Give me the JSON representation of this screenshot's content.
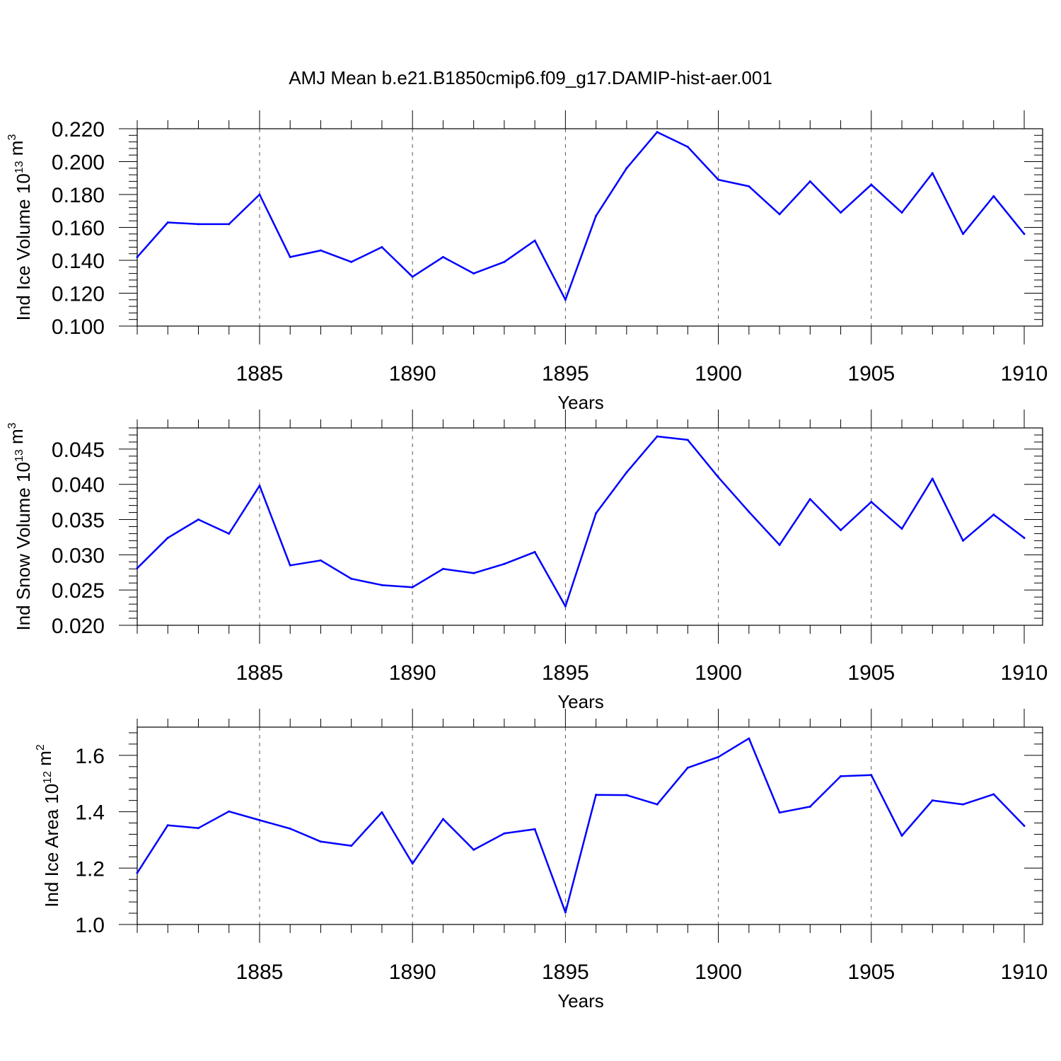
{
  "figure_title": "AMJ Mean b.e21.B1850cmip6.f09_g17.DAMIP-hist-aer.001",
  "colors": {
    "line": "#0000ff",
    "axis": "#000000",
    "grid": "#555555"
  },
  "chart_data": [
    {
      "type": "line",
      "ylabel": {
        "text": "Ind Ice Volume 10",
        "exp": "13",
        "unit": " m",
        "unit_exp": "3"
      },
      "xlabel": "Years",
      "xlim": [
        1881,
        1910
      ],
      "ylim": [
        0.1,
        0.22
      ],
      "yticks": [
        "0.100",
        "0.120",
        "0.140",
        "0.160",
        "0.180",
        "0.200",
        "0.220"
      ],
      "xticks": [
        "1885",
        "1890",
        "1895",
        "1900",
        "1905",
        "1910"
      ],
      "grid": "vertical dashed at major x ticks",
      "x": [
        1881,
        1882,
        1883,
        1884,
        1885,
        1886,
        1887,
        1888,
        1889,
        1890,
        1891,
        1892,
        1893,
        1894,
        1895,
        1896,
        1897,
        1898,
        1899,
        1900,
        1901,
        1902,
        1903,
        1904,
        1905,
        1906,
        1907,
        1908,
        1909,
        1910
      ],
      "values": [
        0.142,
        0.163,
        0.162,
        0.162,
        0.18,
        0.142,
        0.146,
        0.139,
        0.148,
        0.13,
        0.142,
        0.132,
        0.139,
        0.152,
        0.116,
        0.167,
        0.196,
        0.218,
        0.209,
        0.189,
        0.185,
        0.168,
        0.188,
        0.169,
        0.186,
        0.169,
        0.193,
        0.156,
        0.179,
        0.156
      ]
    },
    {
      "type": "line",
      "ylabel": {
        "text": "Ind Snow Volume 10",
        "exp": "13",
        "unit": " m",
        "unit_exp": "3"
      },
      "xlabel": "Years",
      "xlim": [
        1881,
        1910
      ],
      "ylim": [
        0.02,
        0.048
      ],
      "yticks": [
        "0.020",
        "0.025",
        "0.030",
        "0.035",
        "0.040",
        "0.045"
      ],
      "xticks": [
        "1885",
        "1890",
        "1895",
        "1900",
        "1905",
        "1910"
      ],
      "grid": "vertical dashed at major x ticks",
      "x": [
        1881,
        1882,
        1883,
        1884,
        1885,
        1886,
        1887,
        1888,
        1889,
        1890,
        1891,
        1892,
        1893,
        1894,
        1895,
        1896,
        1897,
        1898,
        1899,
        1900,
        1901,
        1902,
        1903,
        1904,
        1905,
        1906,
        1907,
        1908,
        1909,
        1910
      ],
      "values": [
        0.0281,
        0.0324,
        0.035,
        0.033,
        0.0398,
        0.0285,
        0.0292,
        0.0266,
        0.0257,
        0.0254,
        0.028,
        0.0274,
        0.0287,
        0.0304,
        0.0227,
        0.0359,
        0.0417,
        0.0468,
        0.0463,
        0.041,
        0.0361,
        0.0314,
        0.0379,
        0.0335,
        0.0375,
        0.0337,
        0.0408,
        0.032,
        0.0357,
        0.0324
      ]
    },
    {
      "type": "line",
      "ylabel": {
        "text": "Ind Ice Area 10",
        "exp": "12",
        "unit": " m",
        "unit_exp": "2"
      },
      "xlabel": "Years",
      "xlim": [
        1881,
        1910
      ],
      "ylim": [
        1.0,
        1.7
      ],
      "yticks": [
        "1.0",
        "1.2",
        "1.4",
        "1.6"
      ],
      "xticks": [
        "1885",
        "1890",
        "1895",
        "1900",
        "1905",
        "1910"
      ],
      "grid": "vertical dashed at major x ticks",
      "x": [
        1881,
        1882,
        1883,
        1884,
        1885,
        1886,
        1887,
        1888,
        1889,
        1890,
        1891,
        1892,
        1893,
        1894,
        1895,
        1896,
        1897,
        1898,
        1899,
        1900,
        1901,
        1902,
        1903,
        1904,
        1905,
        1906,
        1907,
        1908,
        1909,
        1910
      ],
      "values": [
        1.183,
        1.352,
        1.342,
        1.401,
        1.37,
        1.34,
        1.294,
        1.279,
        1.398,
        1.216,
        1.374,
        1.265,
        1.323,
        1.338,
        1.043,
        1.46,
        1.459,
        1.426,
        1.556,
        1.594,
        1.66,
        1.397,
        1.418,
        1.526,
        1.53,
        1.315,
        1.44,
        1.426,
        1.462,
        1.35
      ]
    }
  ]
}
